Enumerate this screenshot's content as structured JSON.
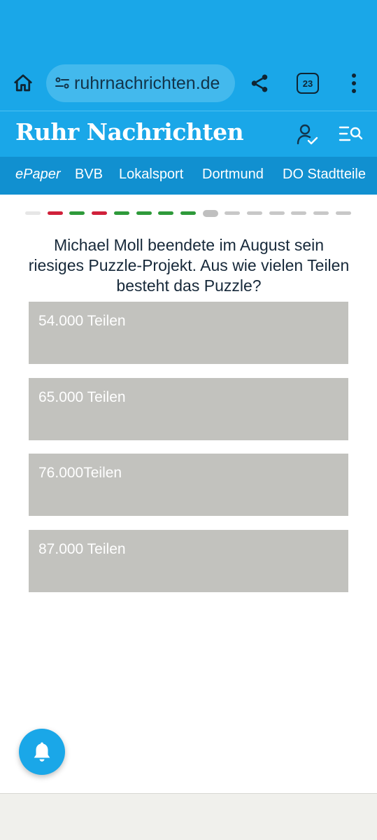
{
  "browser": {
    "url": "ruhrnachrichten.de",
    "tab_count": "23",
    "icons": [
      "home-icon",
      "site-settings-icon",
      "share-icon",
      "tabs-icon",
      "more-vert-icon"
    ]
  },
  "site": {
    "logo": "Ruhr Nachrichten",
    "colors": {
      "header": "#1aa7e8",
      "nav": "#1190d0"
    }
  },
  "nav": {
    "items": [
      "ePaper",
      "BVB",
      "Lokalsport",
      "Dortmund",
      "DO Stadtteile"
    ]
  },
  "quiz": {
    "progress": [
      "seen",
      "wrong",
      "correct",
      "wrong",
      "correct",
      "correct",
      "correct",
      "correct",
      "current",
      "upcoming",
      "upcoming",
      "upcoming",
      "upcoming",
      "upcoming",
      "upcoming"
    ],
    "question": "Michael Moll beendete im August sein riesiges Puzzle-Projekt. Aus wie vielen Teilen besteht das Puzzle?",
    "answers": [
      "54.000 Teilen",
      "65.000 Teilen",
      "76.000Teilen",
      "87.000 Teilen"
    ]
  },
  "fab": {
    "icon": "bell-icon"
  }
}
